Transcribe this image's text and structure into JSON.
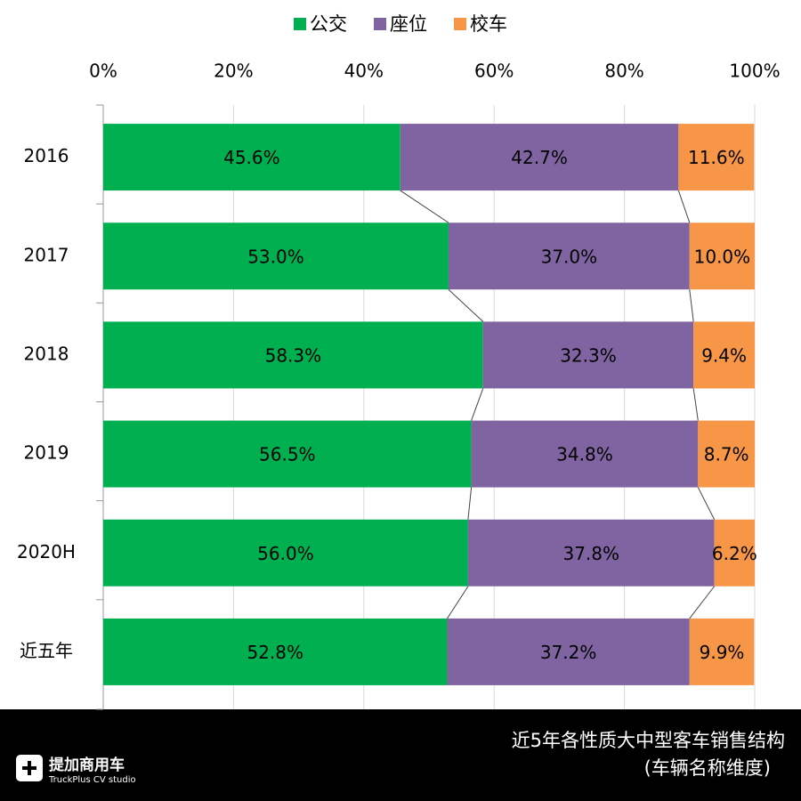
{
  "chart_data": {
    "type": "stacked-bar-horizontal",
    "categories": [
      "2016",
      "2017",
      "2018",
      "2019",
      "2020H",
      "近五年"
    ],
    "series": [
      {
        "name": "公交",
        "color": "#00b050",
        "values": [
          45.6,
          53.0,
          58.3,
          56.5,
          56.0,
          52.8
        ],
        "value_labels": [
          "45.6%",
          "53.0%",
          "58.3%",
          "56.5%",
          "56.0%",
          "52.8%"
        ]
      },
      {
        "name": "座位",
        "color": "#8064a2",
        "values": [
          42.7,
          37.0,
          32.3,
          34.8,
          37.8,
          37.2
        ],
        "value_labels": [
          "42.7%",
          "37.0%",
          "32.3%",
          "34.8%",
          "37.8%",
          "37.2%"
        ]
      },
      {
        "name": "校车",
        "color": "#f79646",
        "values": [
          11.6,
          10.0,
          9.4,
          8.7,
          6.2,
          9.9
        ],
        "value_labels": [
          "11.6%",
          "10.0%",
          "9.4%",
          "8.7%",
          "6.2%",
          "9.9%"
        ]
      }
    ],
    "xlim": [
      0,
      100
    ],
    "xticks": [
      {
        "value": 0,
        "label": "0%"
      },
      {
        "value": 20,
        "label": "20%"
      },
      {
        "value": 40,
        "label": "40%"
      },
      {
        "value": 60,
        "label": "60%"
      },
      {
        "value": 80,
        "label": "80%"
      },
      {
        "value": 100,
        "label": "100%"
      }
    ],
    "grid": true,
    "legend": "top"
  },
  "footer": {
    "title": "近5年各性质大中型客车销售结构",
    "subtitle": "(车辆名称维度)",
    "logo": "提加商用车",
    "logo_sub": "TruckPlus CV studio"
  }
}
